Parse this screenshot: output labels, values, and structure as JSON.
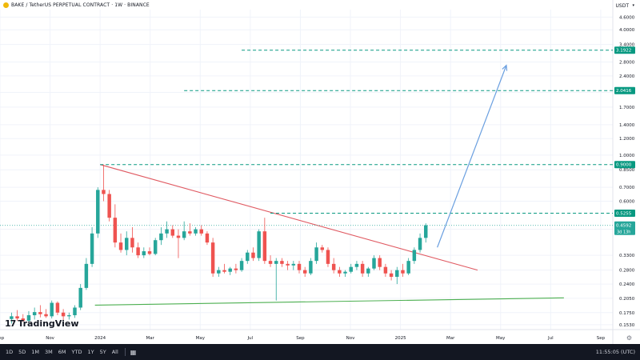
{
  "header": {
    "symbol_title": "BAKE / TetherUS PERPETUAL CONTRACT · 1W · BINANCE",
    "currency": "USDT",
    "currency_caret": "▾"
  },
  "logo": {
    "text": "TradingView",
    "mark": "17"
  },
  "bottombar": {
    "timeframes": [
      "1D",
      "5D",
      "1M",
      "3M",
      "6M",
      "YTD",
      "1Y",
      "5Y",
      "All"
    ],
    "clock": "11:55:05 (UTC)"
  },
  "icons": {
    "coin": "bake-coin-icon",
    "calendar": "calendar-icon",
    "settings": "gear-icon"
  },
  "colors": {
    "up": "#26a69a",
    "down": "#ef5350",
    "teal_line": "#089981",
    "resistance": "#e05a62",
    "support": "#4caf50",
    "arrow": "#6a9fe0",
    "grid": "#f0f3fa",
    "axis_text": "#131722"
  },
  "chart_data": {
    "type": "candlestick",
    "title": "BAKE / TetherUS PERPETUAL CONTRACT · 1W · BINANCE",
    "scale": "log",
    "ylim": [
      0.145,
      5.0
    ],
    "price_ticks": [
      4.6,
      4.0,
      3.4,
      2.8,
      2.4,
      2.0,
      1.7,
      1.4,
      1.2,
      1.0,
      0.85,
      0.7,
      0.6,
      0.44,
      0.33,
      0.28,
      0.24,
      0.205,
      0.175,
      0.153
    ],
    "price_tick_labels": [
      "4.6000",
      "4.0000",
      "3.4000",
      "2.8000",
      "2.4000",
      "2.0000",
      "1.7000",
      "1.4000",
      "1.2000",
      "1.0000",
      "0.8500",
      "0.7000",
      "0.6000",
      "0.4400",
      "0.3300",
      "0.2800",
      "0.2400",
      "0.2050",
      "0.1750",
      "0.1530"
    ],
    "time_ticks": [
      {
        "label": "Sep",
        "week": 0
      },
      {
        "label": "Nov",
        "week": 8.7
      },
      {
        "label": "2024",
        "week": 17.4
      },
      {
        "label": "Mar",
        "week": 26.1
      },
      {
        "label": "May",
        "week": 34.8
      },
      {
        "label": "Jul",
        "week": 43.5
      },
      {
        "label": "Sep",
        "week": 52.2
      },
      {
        "label": "Nov",
        "week": 60.9
      },
      {
        "label": "2025",
        "week": 69.6
      },
      {
        "label": "Mar",
        "week": 78.3
      },
      {
        "label": "May",
        "week": 87.0
      },
      {
        "label": "Jul",
        "week": 95.7
      },
      {
        "label": "Sep",
        "week": 104.4
      }
    ],
    "candles": [
      [
        2,
        0.163,
        0.175,
        0.155,
        0.168
      ],
      [
        3,
        0.168,
        0.18,
        0.16,
        0.164
      ],
      [
        4,
        0.164,
        0.172,
        0.158,
        0.16
      ],
      [
        5,
        0.16,
        0.178,
        0.156,
        0.17
      ],
      [
        6,
        0.17,
        0.185,
        0.162,
        0.176
      ],
      [
        7,
        0.176,
        0.19,
        0.166,
        0.172
      ],
      [
        8,
        0.172,
        0.182,
        0.165,
        0.168
      ],
      [
        9,
        0.168,
        0.2,
        0.164,
        0.195
      ],
      [
        10,
        0.195,
        0.198,
        0.17,
        0.175
      ],
      [
        11,
        0.175,
        0.182,
        0.16,
        0.168
      ],
      [
        12,
        0.168,
        0.175,
        0.162,
        0.17
      ],
      [
        13,
        0.17,
        0.19,
        0.165,
        0.185
      ],
      [
        14,
        0.185,
        0.24,
        0.18,
        0.23
      ],
      [
        15,
        0.23,
        0.32,
        0.225,
        0.3
      ],
      [
        16,
        0.3,
        0.45,
        0.29,
        0.42
      ],
      [
        17,
        0.42,
        0.7,
        0.4,
        0.68
      ],
      [
        18,
        0.68,
        0.9,
        0.6,
        0.65
      ],
      [
        19,
        0.65,
        0.68,
        0.48,
        0.5
      ],
      [
        20,
        0.5,
        0.58,
        0.36,
        0.38
      ],
      [
        21,
        0.38,
        0.42,
        0.34,
        0.35
      ],
      [
        22,
        0.35,
        0.43,
        0.33,
        0.4
      ],
      [
        23,
        0.4,
        0.45,
        0.34,
        0.36
      ],
      [
        24,
        0.36,
        0.38,
        0.32,
        0.33
      ],
      [
        25,
        0.33,
        0.36,
        0.32,
        0.345
      ],
      [
        26,
        0.345,
        0.36,
        0.33,
        0.335
      ],
      [
        27,
        0.335,
        0.4,
        0.33,
        0.39
      ],
      [
        28,
        0.39,
        0.45,
        0.37,
        0.42
      ],
      [
        29,
        0.42,
        0.48,
        0.4,
        0.44
      ],
      [
        30,
        0.44,
        0.46,
        0.4,
        0.41
      ],
      [
        31,
        0.41,
        0.44,
        0.32,
        0.4
      ],
      [
        32,
        0.4,
        0.48,
        0.39,
        0.43
      ],
      [
        33,
        0.43,
        0.47,
        0.41,
        0.42
      ],
      [
        34,
        0.42,
        0.45,
        0.41,
        0.44
      ],
      [
        35,
        0.44,
        0.46,
        0.41,
        0.42
      ],
      [
        36,
        0.42,
        0.43,
        0.37,
        0.38
      ],
      [
        37,
        0.38,
        0.4,
        0.26,
        0.27
      ],
      [
        38,
        0.27,
        0.29,
        0.26,
        0.28
      ],
      [
        39,
        0.28,
        0.3,
        0.27,
        0.275
      ],
      [
        40,
        0.275,
        0.29,
        0.265,
        0.285
      ],
      [
        41,
        0.285,
        0.3,
        0.27,
        0.28
      ],
      [
        42,
        0.28,
        0.32,
        0.275,
        0.31
      ],
      [
        43,
        0.31,
        0.35,
        0.3,
        0.34
      ],
      [
        44,
        0.34,
        0.36,
        0.31,
        0.32
      ],
      [
        45,
        0.32,
        0.44,
        0.31,
        0.43
      ],
      [
        46,
        0.43,
        0.5,
        0.3,
        0.31
      ],
      [
        47,
        0.31,
        0.33,
        0.29,
        0.3
      ],
      [
        48,
        0.3,
        0.32,
        0.2,
        0.31
      ],
      [
        49,
        0.31,
        0.32,
        0.29,
        0.3
      ],
      [
        50,
        0.3,
        0.31,
        0.28,
        0.295
      ],
      [
        51,
        0.295,
        0.31,
        0.28,
        0.3
      ],
      [
        52,
        0.3,
        0.31,
        0.27,
        0.28
      ],
      [
        53,
        0.28,
        0.29,
        0.26,
        0.27
      ],
      [
        54,
        0.27,
        0.32,
        0.265,
        0.31
      ],
      [
        55,
        0.31,
        0.38,
        0.3,
        0.36
      ],
      [
        56,
        0.36,
        0.37,
        0.34,
        0.35
      ],
      [
        57,
        0.35,
        0.36,
        0.29,
        0.3
      ],
      [
        58,
        0.3,
        0.32,
        0.27,
        0.28
      ],
      [
        59,
        0.28,
        0.29,
        0.26,
        0.27
      ],
      [
        60,
        0.27,
        0.28,
        0.26,
        0.275
      ],
      [
        61,
        0.275,
        0.3,
        0.27,
        0.29
      ],
      [
        62,
        0.29,
        0.31,
        0.28,
        0.3
      ],
      [
        63,
        0.3,
        0.31,
        0.26,
        0.27
      ],
      [
        64,
        0.27,
        0.29,
        0.26,
        0.285
      ],
      [
        65,
        0.285,
        0.33,
        0.28,
        0.32
      ],
      [
        66,
        0.32,
        0.33,
        0.28,
        0.29
      ],
      [
        67,
        0.29,
        0.3,
        0.26,
        0.27
      ],
      [
        68,
        0.27,
        0.28,
        0.25,
        0.26
      ],
      [
        69,
        0.26,
        0.29,
        0.24,
        0.28
      ],
      [
        70,
        0.28,
        0.3,
        0.26,
        0.27
      ],
      [
        71,
        0.27,
        0.32,
        0.265,
        0.31
      ],
      [
        72,
        0.31,
        0.36,
        0.3,
        0.35
      ],
      [
        73,
        0.35,
        0.42,
        0.34,
        0.4
      ],
      [
        74,
        0.4,
        0.47,
        0.38,
        0.46
      ]
    ],
    "horizontal_levels": [
      {
        "price": 3.1922,
        "label": "3.1922"
      },
      {
        "price": 2.0416,
        "label": "2.0416"
      },
      {
        "price": 0.9,
        "label": "0.9000"
      },
      {
        "price": 0.5255,
        "label": "0.5255"
      }
    ],
    "current_price": {
      "price": 0.4592,
      "label": "0.4592",
      "countdown": "3d 13h"
    },
    "resistance_line": {
      "from": [
        17.4,
        0.9
      ],
      "to": [
        73.0,
        0.305
      ],
      "extend_to": [
        83.0,
        0.28
      ]
    },
    "support_line": {
      "from": [
        16.5,
        0.19
      ],
      "to": [
        98.0,
        0.206
      ]
    },
    "projection_arrow": {
      "from": [
        76.0,
        0.36
      ],
      "to": [
        88.0,
        2.7
      ]
    }
  }
}
